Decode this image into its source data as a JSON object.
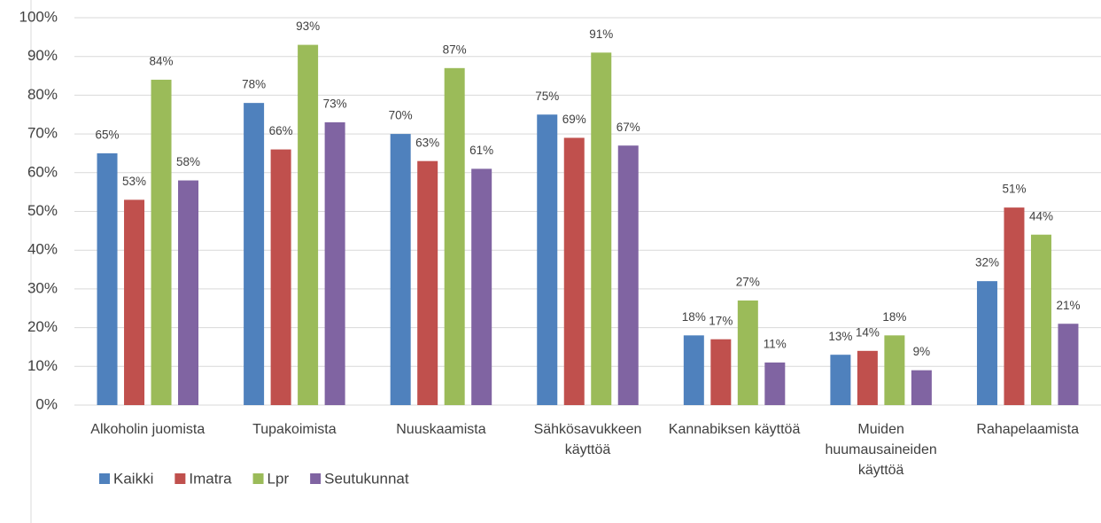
{
  "chart_data": {
    "type": "bar",
    "categories": [
      "Alkoholin juomista",
      "Tupakoimista",
      "Nuuskaamista",
      "Sähkösavukkeen käyttöä",
      "Kannabiksen käyttöä",
      "Muiden huumausaineiden käyttöä",
      "Rahapelaamista"
    ],
    "series": [
      {
        "name": "Kaikki",
        "color": "#4f81bd",
        "values": [
          65,
          78,
          70,
          75,
          18,
          13,
          32
        ],
        "value_labels": [
          "65%",
          "78%",
          "70%",
          "75%",
          "18%",
          "13%",
          "32%"
        ]
      },
      {
        "name": "Imatra",
        "color": "#c0504d",
        "values": [
          53,
          66,
          63,
          69,
          17,
          14,
          51
        ],
        "value_labels": [
          "53%",
          "66%",
          "63%",
          "69%",
          "17%",
          "14%",
          "51%"
        ]
      },
      {
        "name": "Lpr",
        "color": "#9bbb59",
        "values": [
          84,
          93,
          87,
          91,
          27,
          18,
          44
        ],
        "value_labels": [
          "84%",
          "93%",
          "87%",
          "91%",
          "27%",
          "18%",
          "44%"
        ]
      },
      {
        "name": "Seutukunnat",
        "color": "#8064a2",
        "values": [
          58,
          73,
          61,
          67,
          11,
          9,
          21
        ],
        "value_labels": [
          "58%",
          "73%",
          "61%",
          "67%",
          "11%",
          "9%",
          "21%"
        ]
      }
    ],
    "ylim": [
      0,
      100
    ],
    "yticks": [
      {
        "value": 0,
        "label": "0%"
      },
      {
        "value": 10,
        "label": "10%"
      },
      {
        "value": 20,
        "label": "20%"
      },
      {
        "value": 30,
        "label": "30%"
      },
      {
        "value": 40,
        "label": "40%"
      },
      {
        "value": 50,
        "label": "50%"
      },
      {
        "value": 60,
        "label": "60%"
      },
      {
        "value": 70,
        "label": "70%"
      },
      {
        "value": 80,
        "label": "80%"
      },
      {
        "value": 90,
        "label": "90%"
      },
      {
        "value": 100,
        "label": "100%"
      }
    ],
    "grid": true,
    "legend": "bottom-left"
  }
}
